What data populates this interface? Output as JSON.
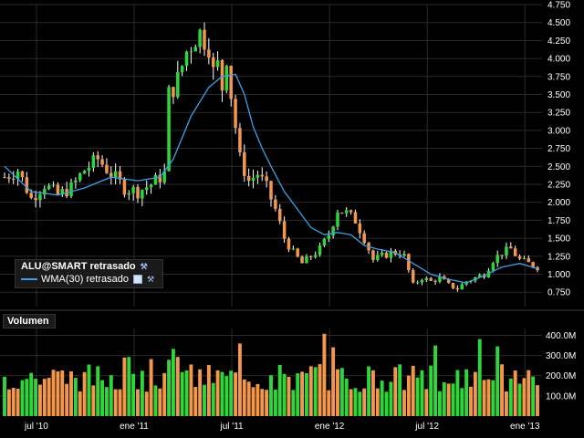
{
  "legend": {
    "symbol_label": "ALU@SMART retrasado",
    "indicator_label": "WMA(30) retrasado"
  },
  "volume_panel": {
    "title": "Volumen"
  },
  "colors": {
    "up": "#2fd63a",
    "down": "#f5974b",
    "wma": "#3aa0e8",
    "grid": "#2b2b2b",
    "background": "#000000"
  },
  "chart_data": [
    {
      "type": "candlestick",
      "title": "",
      "price_axis": {
        "ticks": [
          "0.750",
          "1.000",
          "1.250",
          "1.500",
          "1.750",
          "2.000",
          "2.250",
          "2.500",
          "2.750",
          "3.000",
          "3.250",
          "3.500",
          "3.750",
          "4.000",
          "4.250",
          "4.500",
          "4.750"
        ],
        "ylim": [
          0.55,
          4.75
        ]
      },
      "time_axis": {
        "ticks": [
          "jul '10",
          "ene '11",
          "jul '11",
          "ene '12",
          "jul '12",
          "ene '13"
        ]
      },
      "close_path": [
        [
          0,
          2.35
        ],
        [
          3,
          2.45
        ],
        [
          6,
          2.05
        ],
        [
          9,
          2.25
        ],
        [
          12,
          2.1
        ],
        [
          15,
          2.2
        ],
        [
          18,
          2.45
        ],
        [
          21,
          2.6
        ],
        [
          24,
          2.4
        ],
        [
          27,
          2.2
        ],
        [
          30,
          2.15
        ],
        [
          33,
          2.25
        ],
        [
          36,
          2.4
        ],
        [
          36.5,
          3.1
        ],
        [
          37,
          3.5
        ],
        [
          39,
          3.7
        ],
        [
          41,
          4.1
        ],
        [
          43,
          4.3
        ],
        [
          44,
          4.35
        ],
        [
          46,
          4.2
        ],
        [
          47,
          3.8
        ],
        [
          48,
          3.9
        ],
        [
          49,
          3.6
        ],
        [
          50,
          4.05
        ],
        [
          51,
          3.5
        ],
        [
          53,
          2.6
        ],
        [
          55,
          2.3
        ],
        [
          57,
          2.4
        ],
        [
          59,
          2.2
        ],
        [
          61,
          1.9
        ],
        [
          63,
          1.5
        ],
        [
          65,
          1.3
        ],
        [
          67,
          1.15
        ],
        [
          69,
          1.25
        ],
        [
          71,
          1.35
        ],
        [
          73,
          1.55
        ],
        [
          75,
          1.9
        ],
        [
          77,
          1.85
        ],
        [
          79,
          1.75
        ],
        [
          81,
          1.5
        ],
        [
          83,
          1.2
        ],
        [
          85,
          1.25
        ],
        [
          87,
          1.3
        ],
        [
          89,
          1.3
        ],
        [
          90,
          1.25
        ],
        [
          92,
          0.85
        ],
        [
          94,
          0.95
        ],
        [
          96,
          0.9
        ],
        [
          98,
          0.95
        ],
        [
          100,
          0.85
        ],
        [
          102,
          0.8
        ],
        [
          104,
          0.9
        ],
        [
          106,
          0.95
        ],
        [
          108,
          1.0
        ],
        [
          110,
          1.2
        ],
        [
          112,
          1.3
        ],
        [
          114,
          1.35
        ],
        [
          116,
          1.2
        ],
        [
          118,
          1.15
        ],
        [
          120,
          1.1
        ]
      ]
    },
    {
      "type": "line",
      "series": [
        {
          "name": "WMA(30) retrasado",
          "points": [
            [
              0,
              2.5
            ],
            [
              6,
              2.15
            ],
            [
              12,
              2.1
            ],
            [
              18,
              2.2
            ],
            [
              24,
              2.35
            ],
            [
              30,
              2.3
            ],
            [
              35,
              2.35
            ],
            [
              38,
              2.6
            ],
            [
              42,
              3.2
            ],
            [
              46,
              3.6
            ],
            [
              49,
              3.75
            ],
            [
              52,
              3.78
            ],
            [
              54,
              3.5
            ],
            [
              56,
              3.05
            ],
            [
              58,
              2.75
            ],
            [
              60,
              2.5
            ],
            [
              63,
              2.15
            ],
            [
              66,
              1.9
            ],
            [
              69,
              1.65
            ],
            [
              72,
              1.55
            ],
            [
              75,
              1.58
            ],
            [
              78,
              1.55
            ],
            [
              81,
              1.4
            ],
            [
              84,
              1.35
            ],
            [
              88,
              1.3
            ],
            [
              92,
              1.15
            ],
            [
              96,
              1.0
            ],
            [
              100,
              0.93
            ],
            [
              104,
              0.88
            ],
            [
              108,
              0.98
            ],
            [
              112,
              1.1
            ],
            [
              116,
              1.15
            ],
            [
              120,
              1.08
            ]
          ]
        }
      ]
    },
    {
      "type": "bar",
      "title": "Volumen",
      "value_axis": {
        "ticks": [
          "100.0M",
          "200.0M",
          "300.0M",
          "400.0M"
        ],
        "ylim": [
          0,
          470
        ]
      }
    }
  ]
}
